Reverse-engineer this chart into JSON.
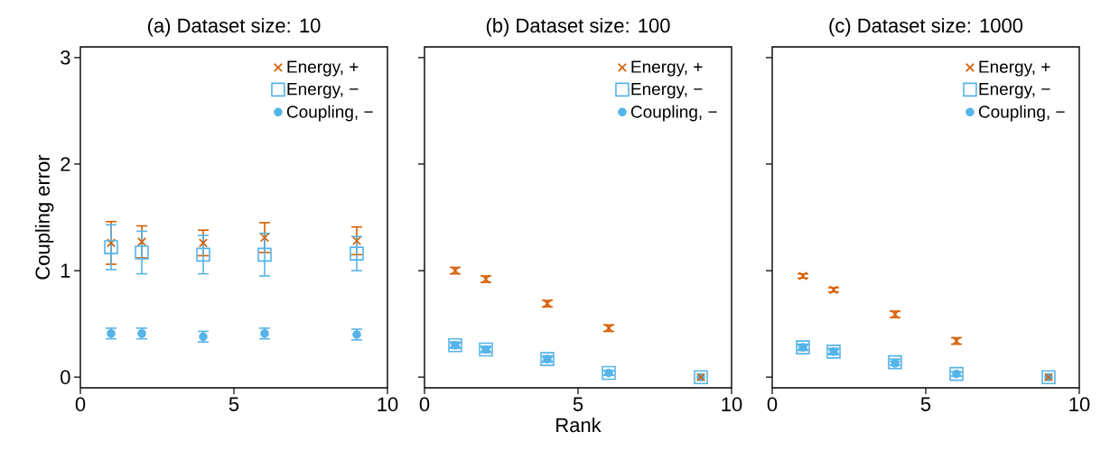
{
  "chart_data": [
    {
      "type": "scatter",
      "title": "(a) Dataset size: 10",
      "ylabel": "Coupling error",
      "x": [
        1,
        2,
        4,
        6,
        9
      ],
      "xlim": [
        0,
        10
      ],
      "ylim": [
        -0.1,
        3.1
      ],
      "xticks": [
        0,
        5,
        10
      ],
      "yticks": [
        0,
        1,
        2,
        3
      ],
      "legend": "top right",
      "grid": false,
      "series": [
        {
          "name": "Energy, +",
          "color": "#d55e00",
          "marker": "cross",
          "values": [
            1.26,
            1.27,
            1.26,
            1.31,
            1.28
          ],
          "errors": [
            0.2,
            0.15,
            0.12,
            0.14,
            0.13
          ]
        },
        {
          "name": "Energy, −",
          "color": "#56b4e9",
          "marker": "square",
          "values": [
            1.22,
            1.17,
            1.15,
            1.15,
            1.16
          ],
          "errors": [
            0.21,
            0.2,
            0.18,
            0.2,
            0.16
          ]
        },
        {
          "name": "Coupling, −",
          "color": "#56b4e9",
          "marker": "circle",
          "values": [
            0.41,
            0.41,
            0.38,
            0.41,
            0.4
          ],
          "errors": [
            0.05,
            0.05,
            0.05,
            0.05,
            0.05
          ]
        }
      ]
    },
    {
      "type": "scatter",
      "title": "(b) Dataset size: 100",
      "xlabel": "Rank",
      "x": [
        1,
        2,
        4,
        6,
        9
      ],
      "xlim": [
        0,
        10
      ],
      "ylim": [
        -0.1,
        3.1
      ],
      "xticks": [
        0,
        5,
        10
      ],
      "yticks": [
        0,
        1,
        2,
        3
      ],
      "tick_labels": "x",
      "legend": "top right",
      "grid": false,
      "series": [
        {
          "name": "Energy, +",
          "color": "#d55e00",
          "marker": "cross",
          "values": [
            1.0,
            0.92,
            0.69,
            0.46,
            0.0
          ],
          "errors": [
            0.03,
            0.03,
            0.03,
            0.03,
            null
          ]
        },
        {
          "name": "Energy, −",
          "color": "#56b4e9",
          "marker": "square",
          "values": [
            0.3,
            0.26,
            0.17,
            0.04,
            0.0
          ],
          "errors": [
            0.03,
            0.03,
            0.03,
            0.02,
            null
          ]
        },
        {
          "name": "Coupling, −",
          "color": "#56b4e9",
          "marker": "circle",
          "values": [
            0.3,
            0.26,
            0.17,
            0.04,
            0.0
          ],
          "errors": [
            0.02,
            0.02,
            0.02,
            0.02,
            null
          ]
        }
      ]
    },
    {
      "type": "scatter",
      "title": "(c) Dataset size: 1000",
      "x": [
        1,
        2,
        4,
        6,
        9
      ],
      "xlim": [
        0,
        10
      ],
      "ylim": [
        -0.1,
        3.1
      ],
      "xticks": [
        0,
        5,
        10
      ],
      "yticks": [
        0,
        1,
        2,
        3
      ],
      "tick_labels": "x",
      "legend": "top right",
      "grid": false,
      "series": [
        {
          "name": "Energy, +",
          "color": "#d55e00",
          "marker": "cross",
          "values": [
            0.95,
            0.82,
            0.59,
            0.34,
            0.0
          ],
          "errors": [
            0.02,
            0.02,
            0.03,
            0.03,
            null
          ]
        },
        {
          "name": "Energy, −",
          "color": "#56b4e9",
          "marker": "square",
          "values": [
            0.28,
            0.24,
            0.14,
            0.03,
            0.0
          ],
          "errors": [
            0.03,
            0.03,
            0.03,
            0.02,
            null
          ]
        },
        {
          "name": "Coupling, −",
          "color": "#56b4e9",
          "marker": "circle",
          "values": [
            0.28,
            0.24,
            0.13,
            0.03,
            0.0
          ],
          "errors": [
            0.02,
            0.02,
            0.02,
            0.02,
            null
          ]
        }
      ]
    }
  ]
}
